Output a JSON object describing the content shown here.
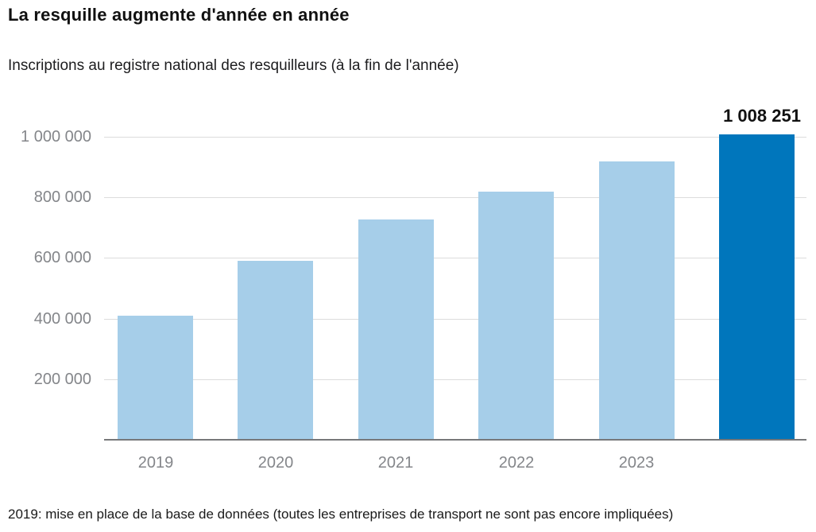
{
  "header": {
    "title": "La resquille augmente d'année en année",
    "subtitle": "Inscriptions au registre national des resquilleurs (à la fin de l'année)"
  },
  "footnote": "2019: mise en place de la base de données (toutes les entreprises de transport ne sont pas encore impliquées)",
  "chart_data": {
    "type": "bar",
    "title": "La resquille augmente d'année en année",
    "subtitle": "Inscriptions au registre national des resquilleurs (à la fin de l'année)",
    "categories": [
      "2019",
      "2020",
      "2021",
      "2022",
      "2023",
      ""
    ],
    "values": [
      410000,
      590000,
      727000,
      820000,
      918000,
      1008251
    ],
    "highlight_index": 5,
    "data_labels": [
      {
        "index": 5,
        "text": "1 008 251"
      }
    ],
    "yticks": [
      {
        "value": 200000,
        "label": "200 000"
      },
      {
        "value": 400000,
        "label": "400 000"
      },
      {
        "value": 600000,
        "label": "600 000"
      },
      {
        "value": 800000,
        "label": "800 000"
      },
      {
        "value": 1000000,
        "label": "1 000 000"
      }
    ],
    "ylim": [
      0,
      1110000
    ],
    "xlabel": "",
    "ylabel": "",
    "grid": "horizontal",
    "legend": "none",
    "colors": {
      "bar": "#a6cee9",
      "bar_highlight": "#0076bc",
      "gridline": "#dcdcdc",
      "axis_line": "#77787a",
      "axis_label": "#84868a",
      "data_label": "#111111"
    }
  }
}
